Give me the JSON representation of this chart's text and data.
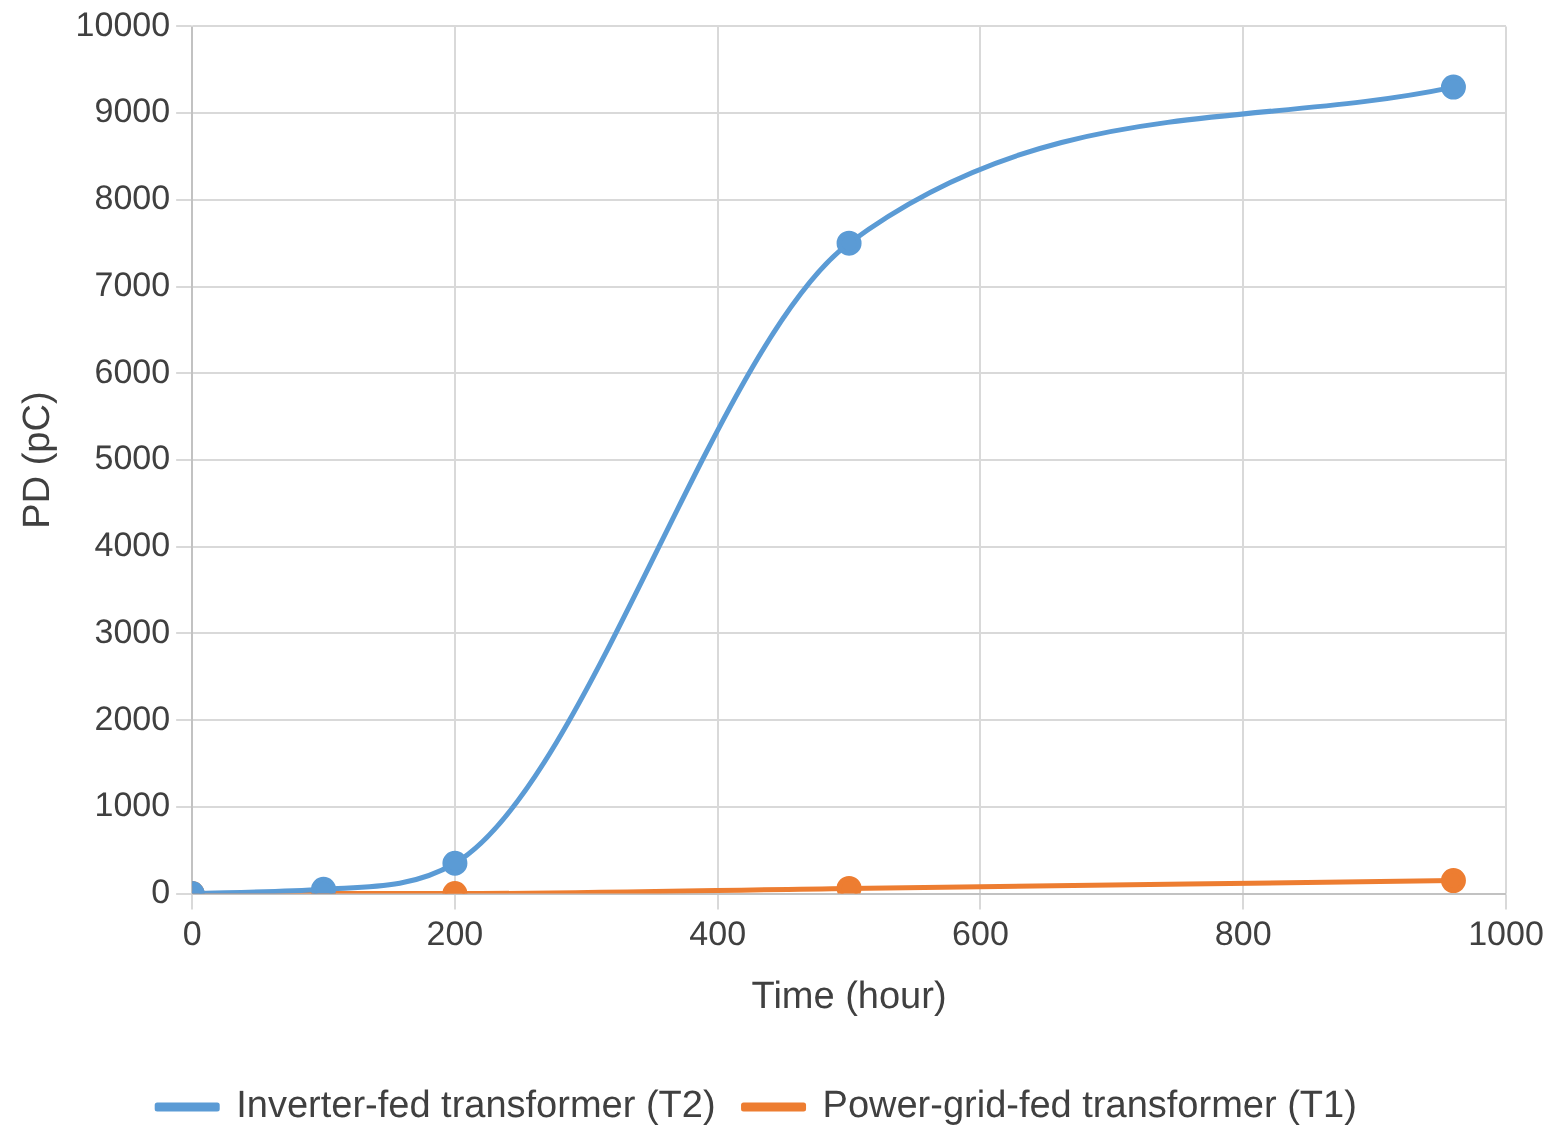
{
  "chart_data": {
    "type": "line",
    "xlabel": "Time (hour)",
    "ylabel": "PD (pC)",
    "xlim": [
      0,
      1000
    ],
    "xticks": [
      0,
      200,
      400,
      600,
      800,
      1000
    ],
    "ylim": [
      0,
      10000
    ],
    "yticks": [
      0,
      1000,
      2000,
      3000,
      4000,
      5000,
      6000,
      7000,
      8000,
      9000,
      10000
    ],
    "grid": true,
    "legend": "bottom",
    "marker": "circle",
    "line_style": "solid",
    "series": [
      {
        "name": "Inverter-fed transformer (T2)",
        "color": "#5b9bd5",
        "x": [
          0,
          100,
          200,
          500,
          960
        ],
        "values": [
          0,
          50,
          350,
          7500,
          9300
        ]
      },
      {
        "name": "Power-grid-fed transformer (T1)",
        "color": "#ed7d31",
        "x": [
          0,
          100,
          200,
          500,
          960
        ],
        "values": [
          0,
          0,
          0,
          60,
          150
        ]
      }
    ]
  }
}
